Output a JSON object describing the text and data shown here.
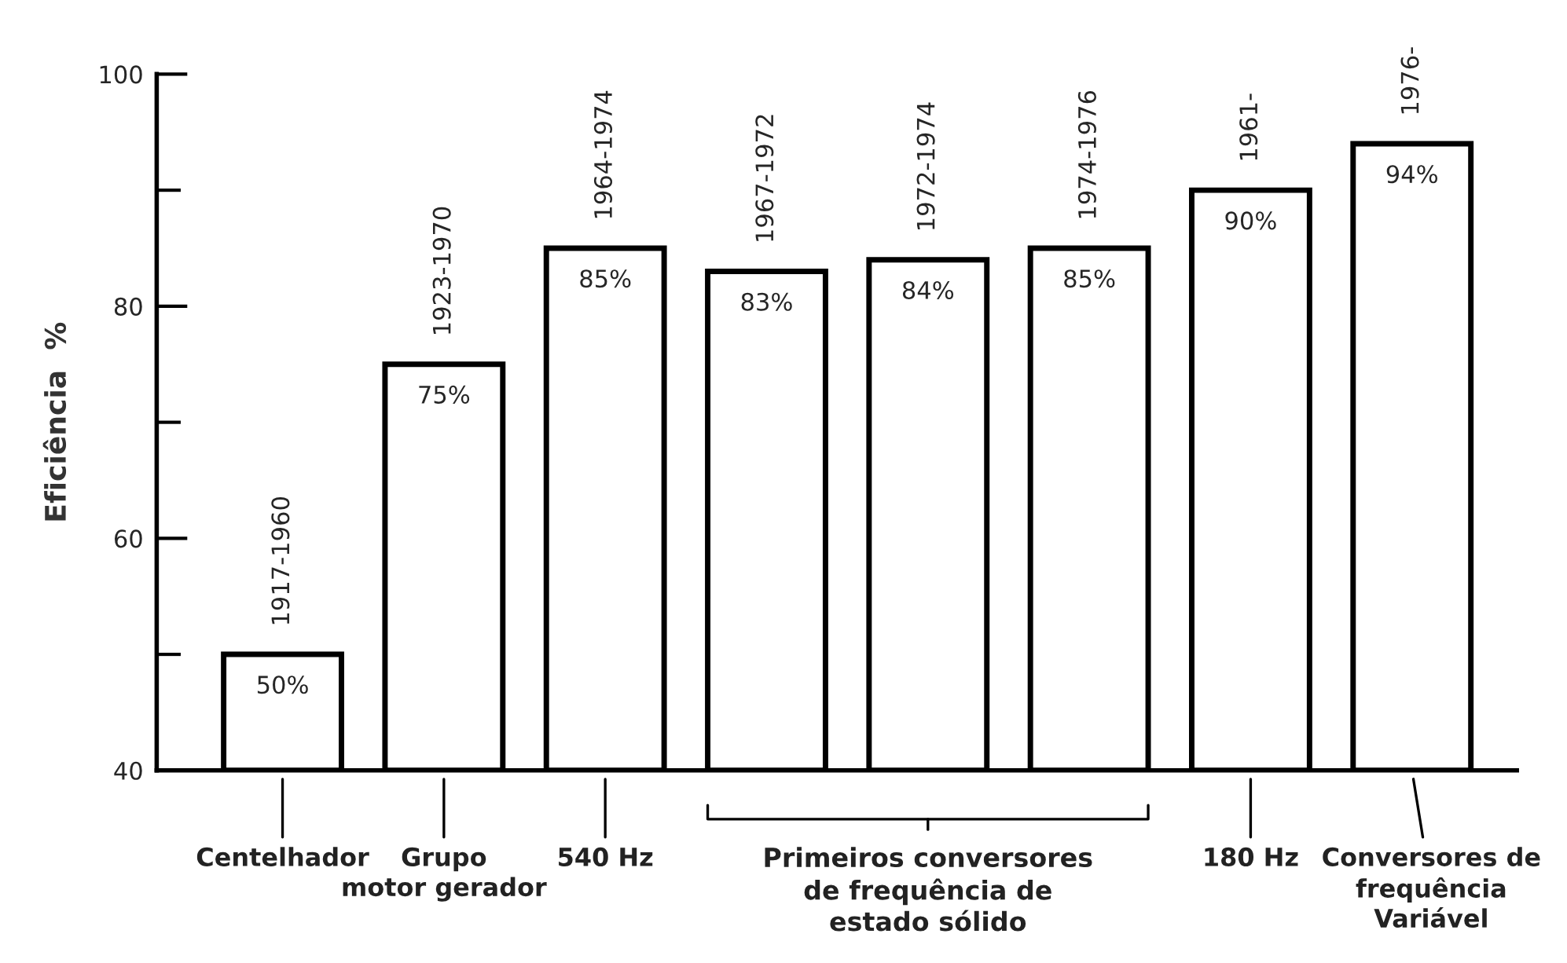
{
  "chart_data": {
    "type": "bar",
    "ylabel": "Eficiência  %",
    "categories": [
      "1917-1960",
      "1923-1970",
      "1964-1974",
      "1967-1972",
      "1972-1974",
      "1974-1976",
      "1961-",
      "1976-"
    ],
    "values": [
      50,
      75,
      85,
      83,
      84,
      85,
      90,
      94
    ],
    "value_labels": [
      "50%",
      "75%",
      "85%",
      "83%",
      "84%",
      "85%",
      "90%",
      "94%"
    ],
    "color": "#ffffff",
    "ylim": [
      40,
      100
    ],
    "yticks": [
      40,
      {
        "value": 50,
        "label": null
      },
      60,
      {
        "value": 70,
        "label": null
      },
      80,
      {
        "value": 90,
        "label": null
      },
      100
    ],
    "grid": false,
    "annotations": [
      {
        "text": "Centelhador",
        "x": "1917-1960"
      },
      {
        "text": "Grupo\nmotor gerador",
        "x": "1923-1970"
      },
      {
        "text": "540 Hz",
        "x": "1964-1974"
      },
      {
        "text": "Primeiros conversores\nde frequência de\nestado sólido",
        "x": "1972-1974"
      },
      {
        "text": "180 Hz",
        "x": "1961-"
      },
      {
        "text": "Conversores de\nfrequência\nVariável",
        "x": "1976-"
      }
    ]
  }
}
